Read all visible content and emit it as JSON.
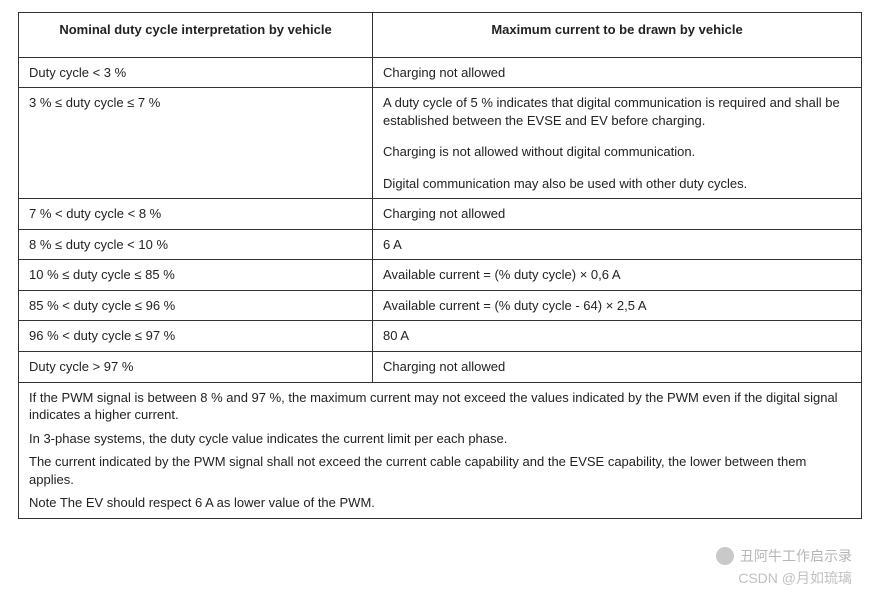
{
  "table": {
    "columns": [
      "Nominal duty cycle interpretation by vehicle",
      "Maximum current to be drawn by vehicle"
    ],
    "col_widths_pct": [
      42,
      58
    ],
    "border_color": "#333333",
    "font_family": "Arial",
    "font_size_pt": 10,
    "header_font_weight": "bold",
    "rows": [
      {
        "c0": "Duty cycle < 3 %",
        "c1": "Charging not allowed"
      },
      {
        "c0": "3 % ≤ duty cycle ≤ 7 %",
        "c1_paras": [
          "A duty cycle of 5 % indicates that digital communication is required and shall be established between the EVSE and EV before charging.",
          "Charging is not allowed without digital communication.",
          "Digital communication may also be used with other duty cycles."
        ]
      },
      {
        "c0": "7 % < duty cycle < 8 %",
        "c1": "Charging not allowed"
      },
      {
        "c0": "8 % ≤ duty cycle < 10 %",
        "c1": "6 A"
      },
      {
        "c0": "10 % ≤ duty cycle ≤ 85 %",
        "c1": "Available current = (% duty cycle) × 0,6 A"
      },
      {
        "c0": "85 % < duty cycle ≤ 96 %",
        "c1": "Available current = (% duty cycle - 64) × 2,5 A"
      },
      {
        "c0": "96 % < duty cycle ≤ 97 %",
        "c1": "80 A"
      },
      {
        "c0": "Duty cycle > 97 %",
        "c1": "Charging not allowed"
      }
    ],
    "notes": [
      "If the PWM signal is between 8 % and 97 %, the maximum current may not exceed the values indicated by the PWM even if the digital signal indicates a higher current.",
      "In 3-phase systems, the duty cycle value indicates the current limit per each phase.",
      "The current indicated by the PWM signal shall not exceed the current cable capability and the EVSE capability, the lower between them applies.",
      "Note The EV should respect 6 A as lower value of the PWM."
    ]
  },
  "watermark": {
    "line1": "丑阿牛工作启示录",
    "line2": "CSDN @月如琉璃",
    "color": "rgba(130,130,130,0.55)"
  }
}
